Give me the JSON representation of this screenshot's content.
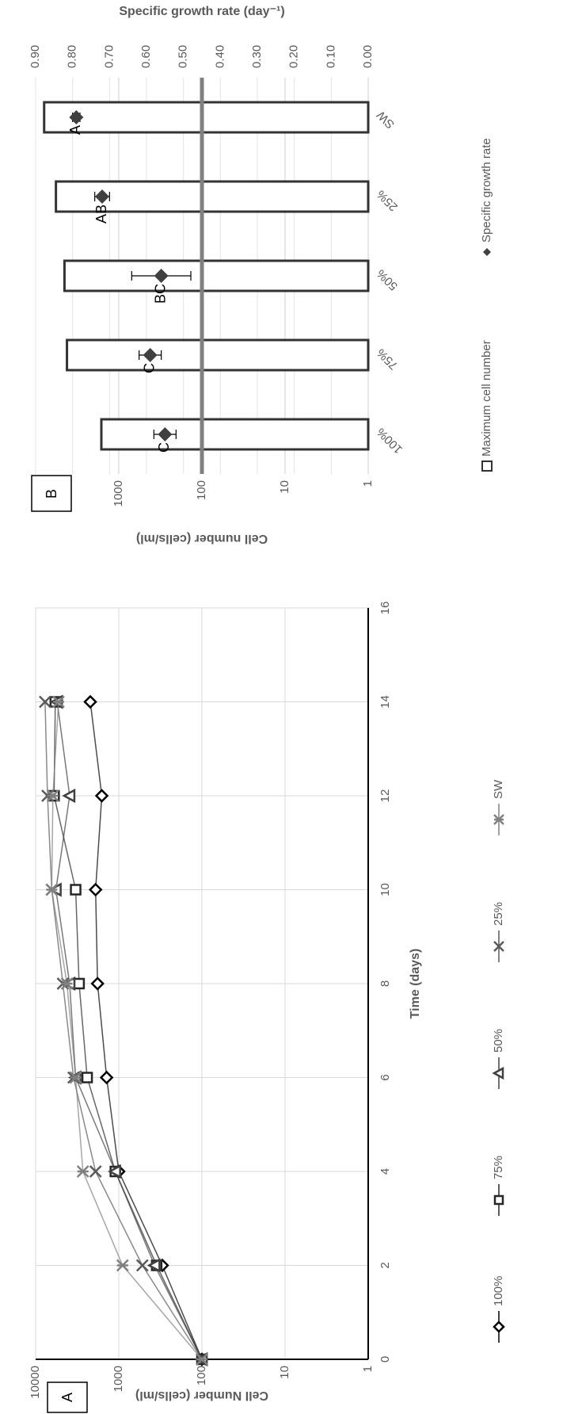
{
  "chart_data": [
    {
      "type": "line",
      "panel_label": "A",
      "x_label": "Time (days)",
      "y_label": "Cell Number (cells/ml)",
      "x": [
        0,
        2,
        4,
        6,
        8,
        10,
        12,
        14
      ],
      "series": [
        {
          "name": "100%",
          "color": "#000000",
          "marker": "diamond",
          "values": [
            100,
            300,
            1000,
            1400,
            1800,
            1900,
            1600,
            2200
          ]
        },
        {
          "name": "75%",
          "color": "#262626",
          "marker": "square",
          "values": [
            100,
            350,
            1100,
            2400,
            3000,
            3300,
            6000,
            5800
          ]
        },
        {
          "name": "50%",
          "color": "#404040",
          "marker": "triangle",
          "values": [
            100,
            370,
            1100,
            3300,
            3900,
            5700,
            3900,
            5500
          ]
        },
        {
          "name": "25%",
          "color": "#595959",
          "marker": "x",
          "values": [
            100,
            520,
            1900,
            3500,
            4700,
            6400,
            7200,
            7700
          ]
        },
        {
          "name": "SW",
          "color": "#808080",
          "marker": "star",
          "values": [
            100,
            900,
            2700,
            3300,
            4200,
            6400,
            6200,
            5300
          ]
        }
      ],
      "xlim": [
        0,
        16
      ],
      "xticks": [
        0,
        2,
        4,
        6,
        8,
        10,
        12,
        14,
        16
      ],
      "ylim": [
        1,
        10000
      ],
      "yticks": [
        1,
        10,
        100,
        1000,
        10000
      ],
      "log_y": true,
      "grid": true,
      "legend": "bottom"
    },
    {
      "type": "combo",
      "panel_label": "B",
      "y_label": "Cell number (cells/ml)",
      "y2_label": "Specific growth rate (day⁻¹)",
      "categories": [
        "100%",
        "75%",
        "50%",
        "25%",
        "SW"
      ],
      "series": [
        {
          "name": "Maximum cell number",
          "color": "#ffffff",
          "kind": "bar",
          "values": [
            1620,
            4200,
            4500,
            5700,
            7900
          ]
        },
        {
          "name": "Specific growth rate",
          "color": "#404040",
          "kind": "scatter",
          "axis": "y2",
          "values": [
            0.55,
            0.59,
            0.56,
            0.72,
            0.79
          ],
          "errors": [
            0.03,
            0.03,
            0.08,
            0.02,
            0.01
          ],
          "annotations": [
            "C",
            "C",
            "BC",
            "AB",
            "A"
          ]
        }
      ],
      "reference_line": 100,
      "ylim": [
        1,
        10000
      ],
      "yticks": [
        1,
        10,
        100,
        1000
      ],
      "y2lim": [
        0,
        0.9
      ],
      "y2ticks": [
        {
          "value": 0,
          "label": "0.00"
        },
        {
          "value": 0.1,
          "label": "0.10"
        },
        {
          "value": 0.2,
          "label": "0.20"
        },
        {
          "value": 0.3,
          "label": "0.30"
        },
        {
          "value": 0.4,
          "label": "0.40"
        },
        {
          "value": 0.5,
          "label": "0.50"
        },
        {
          "value": 0.6,
          "label": "0.60"
        },
        {
          "value": 0.7,
          "label": "0.70"
        },
        {
          "value": 0.8,
          "label": "0.80"
        },
        {
          "value": 0.9,
          "label": "0.90"
        }
      ],
      "log_y": true,
      "grid": true,
      "legend": "bottom"
    }
  ]
}
